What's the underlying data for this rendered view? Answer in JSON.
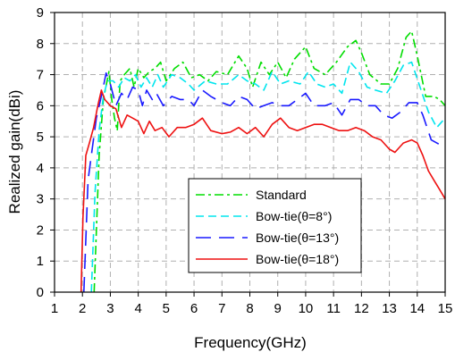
{
  "chart_data": {
    "type": "line",
    "title": "",
    "xlabel": "Frequency(GHz)",
    "ylabel": "Realized gain(dBi)",
    "xlim": [
      1,
      15
    ],
    "ylim": [
      0,
      9
    ],
    "xticks": [
      "1",
      "2",
      "3",
      "4",
      "5",
      "6",
      "7",
      "8",
      "9",
      "10",
      "11",
      "12",
      "13",
      "14",
      "15"
    ],
    "yticks": [
      "0",
      "1",
      "2",
      "3",
      "4",
      "5",
      "6",
      "7",
      "8",
      "9"
    ],
    "grid": true,
    "legend_position": "bottom-right",
    "series": [
      {
        "name": "Standard",
        "color": "#00dd00",
        "dash": "dash-dot",
        "points": [
          [
            2.42,
            0
          ],
          [
            2.6,
            4.4
          ],
          [
            2.75,
            6.2
          ],
          [
            2.95,
            7.1
          ],
          [
            3.05,
            6.2
          ],
          [
            3.15,
            5.6
          ],
          [
            3.25,
            5.2
          ],
          [
            3.35,
            6.8
          ],
          [
            3.5,
            7.0
          ],
          [
            3.7,
            7.2
          ],
          [
            3.85,
            6.6
          ],
          [
            4.0,
            7.2
          ],
          [
            4.2,
            6.9
          ],
          [
            4.4,
            7.1
          ],
          [
            4.6,
            7.2
          ],
          [
            4.8,
            7.4
          ],
          [
            5.0,
            6.8
          ],
          [
            5.3,
            7.2
          ],
          [
            5.6,
            7.4
          ],
          [
            5.9,
            6.9
          ],
          [
            6.2,
            7.0
          ],
          [
            6.5,
            6.8
          ],
          [
            6.8,
            7.1
          ],
          [
            7.2,
            7.0
          ],
          [
            7.6,
            7.6
          ],
          [
            7.9,
            7.2
          ],
          [
            8.1,
            6.6
          ],
          [
            8.4,
            7.4
          ],
          [
            8.7,
            7.0
          ],
          [
            9.0,
            7.4
          ],
          [
            9.3,
            6.9
          ],
          [
            9.6,
            7.5
          ],
          [
            10.0,
            7.9
          ],
          [
            10.3,
            7.2
          ],
          [
            10.7,
            7.0
          ],
          [
            11.1,
            7.4
          ],
          [
            11.5,
            7.9
          ],
          [
            11.8,
            8.1
          ],
          [
            12.0,
            7.7
          ],
          [
            12.3,
            7.0
          ],
          [
            12.7,
            6.7
          ],
          [
            13.0,
            6.7
          ],
          [
            13.3,
            7.2
          ],
          [
            13.6,
            8.2
          ],
          [
            13.8,
            8.4
          ],
          [
            14.0,
            7.6
          ],
          [
            14.3,
            6.3
          ],
          [
            14.6,
            6.3
          ],
          [
            14.8,
            6.2
          ],
          [
            15.0,
            6.0
          ]
        ]
      },
      {
        "name": "Bow-tie(θ=8°)",
        "color": "#00e5ee",
        "dash": "dash",
        "points": [
          [
            2.32,
            0
          ],
          [
            2.45,
            3.2
          ],
          [
            2.6,
            5.2
          ],
          [
            2.75,
            6.3
          ],
          [
            2.9,
            6.8
          ],
          [
            3.1,
            6.8
          ],
          [
            3.3,
            6.6
          ],
          [
            3.5,
            6.9
          ],
          [
            3.7,
            6.8
          ],
          [
            3.9,
            7.0
          ],
          [
            4.1,
            6.6
          ],
          [
            4.3,
            6.9
          ],
          [
            4.5,
            6.6
          ],
          [
            4.7,
            7.0
          ],
          [
            4.9,
            6.6
          ],
          [
            5.2,
            7.0
          ],
          [
            5.5,
            6.9
          ],
          [
            5.8,
            6.7
          ],
          [
            6.0,
            6.5
          ],
          [
            6.4,
            6.8
          ],
          [
            6.8,
            6.7
          ],
          [
            7.2,
            6.7
          ],
          [
            7.6,
            7.0
          ],
          [
            7.9,
            6.8
          ],
          [
            8.2,
            6.7
          ],
          [
            8.5,
            6.5
          ],
          [
            8.8,
            7.1
          ],
          [
            9.1,
            6.7
          ],
          [
            9.4,
            6.8
          ],
          [
            9.8,
            6.7
          ],
          [
            10.1,
            7.1
          ],
          [
            10.4,
            6.7
          ],
          [
            10.7,
            6.6
          ],
          [
            11.0,
            6.7
          ],
          [
            11.3,
            6.4
          ],
          [
            11.6,
            7.4
          ],
          [
            11.9,
            7.1
          ],
          [
            12.2,
            6.6
          ],
          [
            12.5,
            6.5
          ],
          [
            12.9,
            6.4
          ],
          [
            13.2,
            6.8
          ],
          [
            13.5,
            7.3
          ],
          [
            13.8,
            7.4
          ],
          [
            14.1,
            6.6
          ],
          [
            14.4,
            5.8
          ],
          [
            14.7,
            5.3
          ],
          [
            15.0,
            5.6
          ]
        ]
      },
      {
        "name": "Bow-tie(θ=13°)",
        "color": "#1a1aff",
        "dash": "longdash",
        "points": [
          [
            2.05,
            0
          ],
          [
            2.2,
            3.6
          ],
          [
            2.35,
            4.6
          ],
          [
            2.5,
            5.6
          ],
          [
            2.7,
            6.4
          ],
          [
            2.85,
            7.05
          ],
          [
            3.0,
            6.7
          ],
          [
            3.2,
            6.0
          ],
          [
            3.4,
            6.4
          ],
          [
            3.6,
            6.2
          ],
          [
            3.8,
            6.6
          ],
          [
            4.0,
            6.5
          ],
          [
            4.15,
            6.0
          ],
          [
            4.3,
            6.5
          ],
          [
            4.5,
            6.2
          ],
          [
            4.65,
            6.4
          ],
          [
            4.9,
            6.0
          ],
          [
            5.2,
            6.3
          ],
          [
            5.5,
            6.2
          ],
          [
            5.8,
            6.2
          ],
          [
            6.0,
            6.0
          ],
          [
            6.3,
            6.5
          ],
          [
            6.6,
            6.3
          ],
          [
            7.0,
            6.1
          ],
          [
            7.3,
            6.0
          ],
          [
            7.6,
            6.3
          ],
          [
            7.9,
            6.2
          ],
          [
            8.2,
            5.9
          ],
          [
            8.5,
            6.0
          ],
          [
            8.8,
            6.1
          ],
          [
            9.1,
            6.0
          ],
          [
            9.4,
            6.0
          ],
          [
            9.7,
            6.2
          ],
          [
            10.0,
            6.4
          ],
          [
            10.3,
            6.0
          ],
          [
            10.7,
            6.0
          ],
          [
            11.0,
            6.1
          ],
          [
            11.3,
            5.7
          ],
          [
            11.6,
            6.2
          ],
          [
            11.9,
            6.2
          ],
          [
            12.2,
            6.0
          ],
          [
            12.5,
            6.0
          ],
          [
            12.8,
            5.7
          ],
          [
            13.1,
            5.6
          ],
          [
            13.4,
            5.8
          ],
          [
            13.7,
            6.1
          ],
          [
            14.0,
            6.1
          ],
          [
            14.2,
            5.7
          ],
          [
            14.5,
            4.9
          ],
          [
            14.8,
            4.75
          ],
          [
            15.0,
            4.7
          ]
        ]
      },
      {
        "name": "Bow-tie(θ=18°)",
        "color": "#ee1111",
        "dash": "solid",
        "points": [
          [
            1.95,
            0
          ],
          [
            2.02,
            2.4
          ],
          [
            2.12,
            4.4
          ],
          [
            2.25,
            4.8
          ],
          [
            2.4,
            5.3
          ],
          [
            2.55,
            6.0
          ],
          [
            2.68,
            6.5
          ],
          [
            2.8,
            6.2
          ],
          [
            3.0,
            6.0
          ],
          [
            3.2,
            5.9
          ],
          [
            3.4,
            5.3
          ],
          [
            3.6,
            5.7
          ],
          [
            3.8,
            5.6
          ],
          [
            4.0,
            5.5
          ],
          [
            4.2,
            5.1
          ],
          [
            4.4,
            5.5
          ],
          [
            4.6,
            5.2
          ],
          [
            4.85,
            5.3
          ],
          [
            5.1,
            5.0
          ],
          [
            5.4,
            5.3
          ],
          [
            5.7,
            5.3
          ],
          [
            6.0,
            5.4
          ],
          [
            6.3,
            5.6
          ],
          [
            6.6,
            5.2
          ],
          [
            7.0,
            5.1
          ],
          [
            7.3,
            5.15
          ],
          [
            7.6,
            5.3
          ],
          [
            7.9,
            5.1
          ],
          [
            8.2,
            5.3
          ],
          [
            8.5,
            5.0
          ],
          [
            8.8,
            5.4
          ],
          [
            9.1,
            5.6
          ],
          [
            9.4,
            5.3
          ],
          [
            9.7,
            5.2
          ],
          [
            10.0,
            5.3
          ],
          [
            10.3,
            5.4
          ],
          [
            10.6,
            5.4
          ],
          [
            10.9,
            5.3
          ],
          [
            11.2,
            5.2
          ],
          [
            11.5,
            5.2
          ],
          [
            11.8,
            5.3
          ],
          [
            12.1,
            5.2
          ],
          [
            12.4,
            5.0
          ],
          [
            12.7,
            4.9
          ],
          [
            13.0,
            4.6
          ],
          [
            13.2,
            4.5
          ],
          [
            13.5,
            4.8
          ],
          [
            13.8,
            4.9
          ],
          [
            14.0,
            4.8
          ],
          [
            14.2,
            4.4
          ],
          [
            14.4,
            3.9
          ],
          [
            14.6,
            3.6
          ],
          [
            14.8,
            3.3
          ],
          [
            15.0,
            3.0
          ]
        ]
      }
    ]
  }
}
